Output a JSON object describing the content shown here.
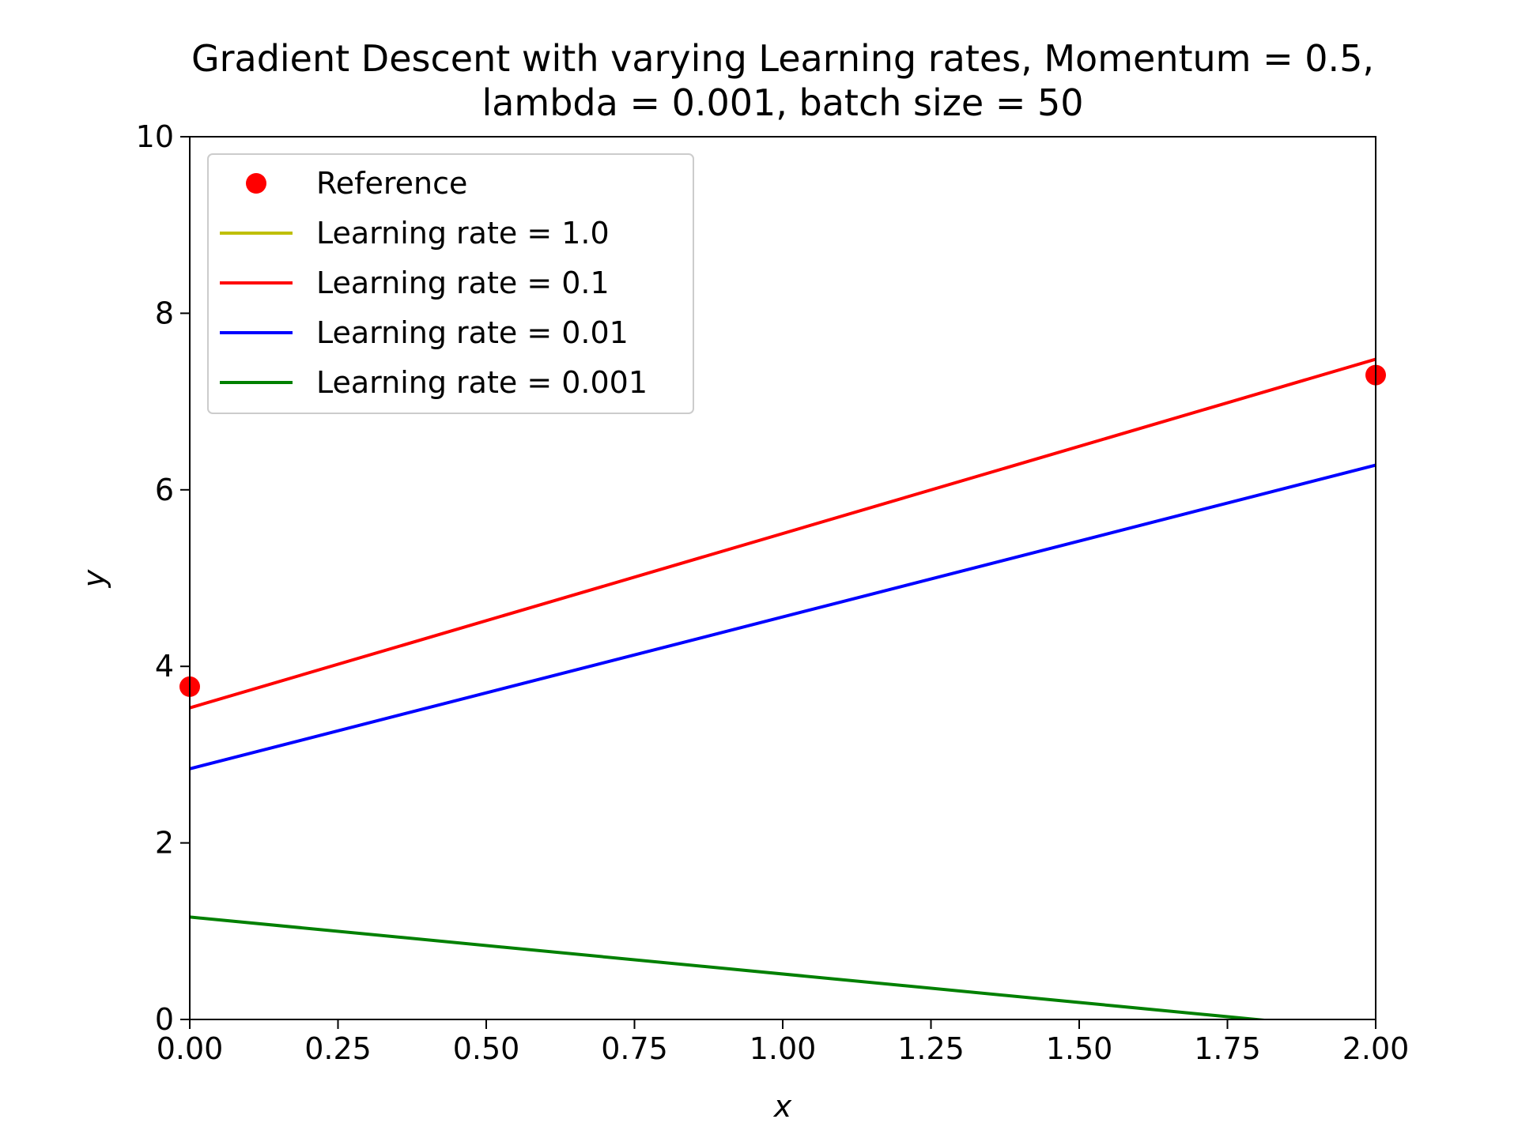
{
  "chart_data": {
    "type": "line",
    "title": "Gradient Descent with varying Learning rates, Momentum = 0.5,",
    "subtitle": "lambda = 0.001, batch size = 50",
    "xlabel": "x",
    "ylabel": "y",
    "xlim": [
      0,
      2
    ],
    "ylim": [
      0,
      10
    ],
    "xticks": [
      "0.00",
      "0.25",
      "0.50",
      "0.75",
      "1.00",
      "1.25",
      "1.50",
      "1.75",
      "2.00"
    ],
    "yticks": [
      "0",
      "2",
      "4",
      "6",
      "8",
      "10"
    ],
    "legend_position": "upper-left",
    "reference": {
      "name": "Reference",
      "color": "#ff0000",
      "points": [
        {
          "x": 0.0,
          "y": 3.77
        },
        {
          "x": 2.0,
          "y": 7.3
        }
      ]
    },
    "series": [
      {
        "name": "Learning rate = 1.0",
        "color": "#bfbf00",
        "x": [
          0,
          2
        ],
        "y": [
          null,
          null
        ]
      },
      {
        "name": "Learning rate = 0.1",
        "color": "#ff0000",
        "x": [
          0,
          2
        ],
        "y": [
          3.53,
          7.48
        ]
      },
      {
        "name": "Learning rate = 0.01",
        "color": "#0000ff",
        "x": [
          0,
          2
        ],
        "y": [
          2.84,
          6.28
        ]
      },
      {
        "name": "Learning rate = 0.001",
        "color": "#008000",
        "x": [
          0,
          2
        ],
        "y": [
          1.16,
          -0.13
        ]
      }
    ]
  }
}
